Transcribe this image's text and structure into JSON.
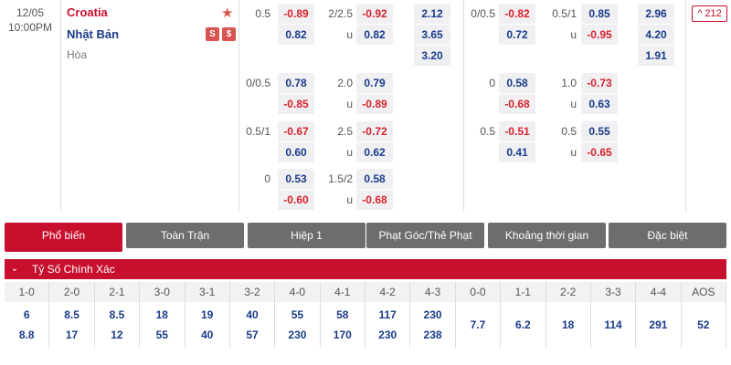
{
  "match": {
    "date": "12/05",
    "time": "10:00PM",
    "home": "Croatia",
    "away": "Nhật Bản",
    "draw": "Hòa",
    "away_icons": [
      "S",
      "$"
    ],
    "more_count": "212",
    "more_label": "^ 212"
  },
  "full_time": {
    "main": {
      "hdp_label": "0.5",
      "hdp_home": "-0.89",
      "hdp_away": "0.82",
      "ou_label": "2/2.5",
      "ou_over": "-0.92",
      "ou_u": "u",
      "ou_under": "0.82",
      "x12": [
        "2.12",
        "3.65",
        "3.20"
      ]
    },
    "extra": [
      {
        "hdp_label": "0/0.5",
        "hdp_home": "0.78",
        "hdp_away": "-0.85",
        "ou_label": "2.0",
        "ou_over": "0.79",
        "ou_u": "u",
        "ou_under": "-0.89"
      },
      {
        "hdp_label": "0.5/1",
        "hdp_home": "-0.67",
        "hdp_away": "0.60",
        "ou_label": "2.5",
        "ou_over": "-0.72",
        "ou_u": "u",
        "ou_under": "0.62"
      },
      {
        "hdp_label": "0",
        "hdp_home": "0.53",
        "hdp_away": "-0.60",
        "ou_label": "1.5/2",
        "ou_over": "0.58",
        "ou_u": "u",
        "ou_under": "-0.68"
      }
    ]
  },
  "first_half": {
    "main": {
      "hdp_label": "0/0.5",
      "hdp_home": "-0.82",
      "hdp_away": "0.72",
      "ou_label": "0.5/1",
      "ou_over": "0.85",
      "ou_u": "u",
      "ou_under": "-0.95",
      "x12": [
        "2.96",
        "4.20",
        "1.91"
      ]
    },
    "extra": [
      {
        "hdp_label": "0",
        "hdp_home": "0.58",
        "hdp_away": "-0.68",
        "ou_label": "1.0",
        "ou_over": "-0.73",
        "ou_u": "u",
        "ou_under": "0.63"
      },
      {
        "hdp_label": "0.5",
        "hdp_home": "-0.51",
        "hdp_away": "0.41",
        "ou_label": "0.5",
        "ou_over": "0.55",
        "ou_u": "u",
        "ou_under": "-0.65"
      }
    ]
  },
  "tabs": [
    "Phổ biến",
    "Toàn Trận",
    "Hiệp 1",
    "Phạt Góc/Thẻ Phạt",
    "Khoảng thời gian",
    "Đặc biệt"
  ],
  "section": {
    "title": "Tỷ Số Chính Xác"
  },
  "correct_score": {
    "headers": [
      "1-0",
      "2-0",
      "2-1",
      "3-0",
      "3-1",
      "3-2",
      "4-0",
      "4-1",
      "4-2",
      "4-3",
      "0-0",
      "1-1",
      "2-2",
      "3-3",
      "4-4",
      "AOS"
    ],
    "home_row": [
      "6",
      "8.5",
      "8.5",
      "18",
      "19",
      "40",
      "55",
      "58",
      "117",
      "230"
    ],
    "away_row": [
      "8.8",
      "17",
      "12",
      "55",
      "40",
      "57",
      "230",
      "170",
      "230",
      "238"
    ],
    "draw_row": [
      "7.7",
      "6.2",
      "18",
      "114",
      "291",
      "52"
    ]
  },
  "colors": {
    "accent": "#c8102e",
    "negative": "#d9212c",
    "positive": "#1a3a8a",
    "tab_inactive": "#6d6d6d"
  }
}
